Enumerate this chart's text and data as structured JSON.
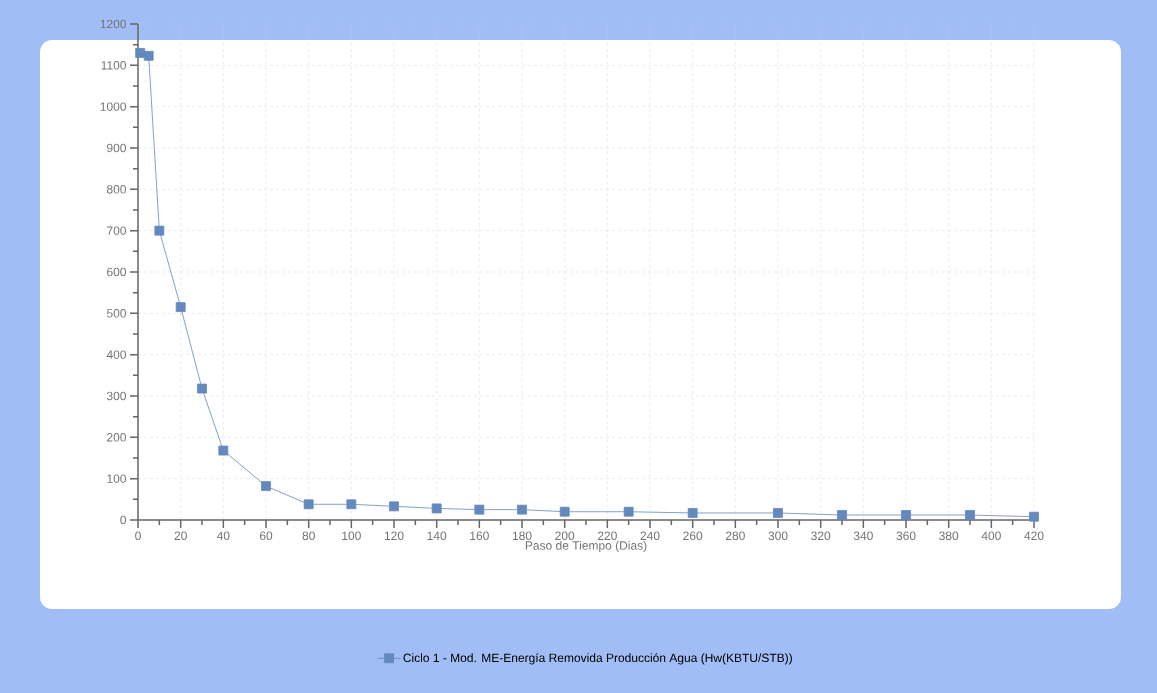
{
  "chart_data": {
    "type": "line",
    "xlabel": "Paso de Tiempo (Dias)",
    "x": [
      1,
      5,
      10,
      20,
      30,
      40,
      60,
      80,
      100,
      120,
      140,
      160,
      180,
      200,
      230,
      260,
      300,
      330,
      360,
      390,
      420
    ],
    "series": [
      {
        "name": "Ciclo 1 - Mod. ME-Energía Removida Producción Agua (Hw(KBTU/STB))",
        "color": "#6389bf",
        "values": [
          1130,
          1123,
          700,
          515,
          318,
          168,
          82,
          38,
          38,
          33,
          28,
          25,
          25,
          20,
          20,
          17,
          17,
          12,
          12,
          12,
          8
        ]
      }
    ],
    "xlim": [
      0,
      420
    ],
    "xticks": [
      0,
      20,
      40,
      60,
      80,
      100,
      120,
      140,
      160,
      180,
      200,
      220,
      240,
      260,
      280,
      300,
      320,
      340,
      360,
      380,
      400,
      420
    ],
    "ylim": [
      0,
      1200
    ],
    "yticks": [
      0,
      100,
      200,
      300,
      400,
      500,
      600,
      700,
      800,
      900,
      1000,
      1100,
      1200
    ],
    "grid": true,
    "legend": "bottom",
    "marker": "square",
    "line_style": "solid"
  }
}
